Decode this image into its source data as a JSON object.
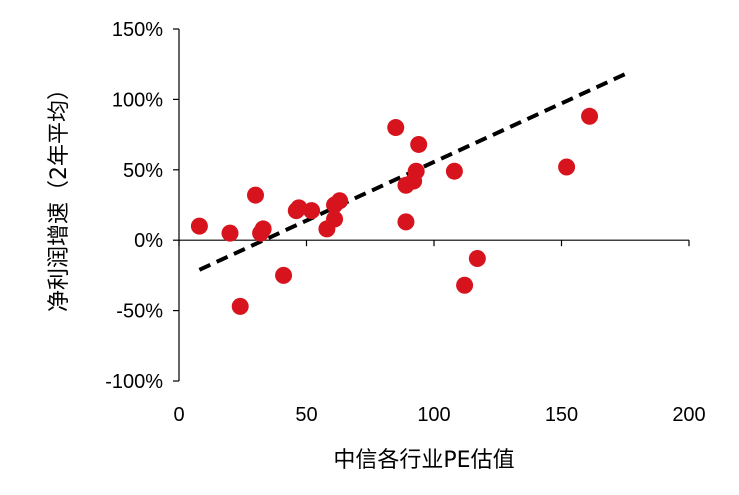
{
  "chart_data": {
    "type": "scatter",
    "title": "",
    "xlabel": "中信各行业PE估值",
    "ylabel": "净利润增速（2年平均）",
    "xlim": [
      0,
      200
    ],
    "ylim": [
      -100,
      150
    ],
    "x_ticks": [
      0,
      50,
      100,
      150,
      200
    ],
    "x_tick_labels": [
      "0",
      "50",
      "100",
      "150",
      "200"
    ],
    "y_ticks": [
      -100,
      -50,
      0,
      50,
      100,
      150
    ],
    "y_tick_labels": [
      "-100%",
      "-50%",
      "0%",
      "50%",
      "100%",
      "150%"
    ],
    "grid": false,
    "legend": "none",
    "point_color": "#d7141e",
    "trendline": {
      "style": "dashed",
      "color": "#000000",
      "points": [
        [
          8,
          -21
        ],
        [
          175,
          118
        ]
      ]
    },
    "series": [
      {
        "points": [
          [
            8,
            10
          ],
          [
            20,
            5
          ],
          [
            24,
            -47
          ],
          [
            30,
            32
          ],
          [
            32,
            5
          ],
          [
            33,
            8
          ],
          [
            41,
            -25
          ],
          [
            46,
            21
          ],
          [
            47,
            23
          ],
          [
            52,
            21
          ],
          [
            58,
            8
          ],
          [
            61,
            15
          ],
          [
            61,
            25
          ],
          [
            63,
            28
          ],
          [
            85,
            80
          ],
          [
            89,
            13
          ],
          [
            89,
            39
          ],
          [
            92,
            42
          ],
          [
            93,
            49
          ],
          [
            94,
            68
          ],
          [
            108,
            49
          ],
          [
            112,
            -32
          ],
          [
            117,
            -13
          ],
          [
            152,
            52
          ],
          [
            161,
            88
          ]
        ]
      }
    ]
  }
}
